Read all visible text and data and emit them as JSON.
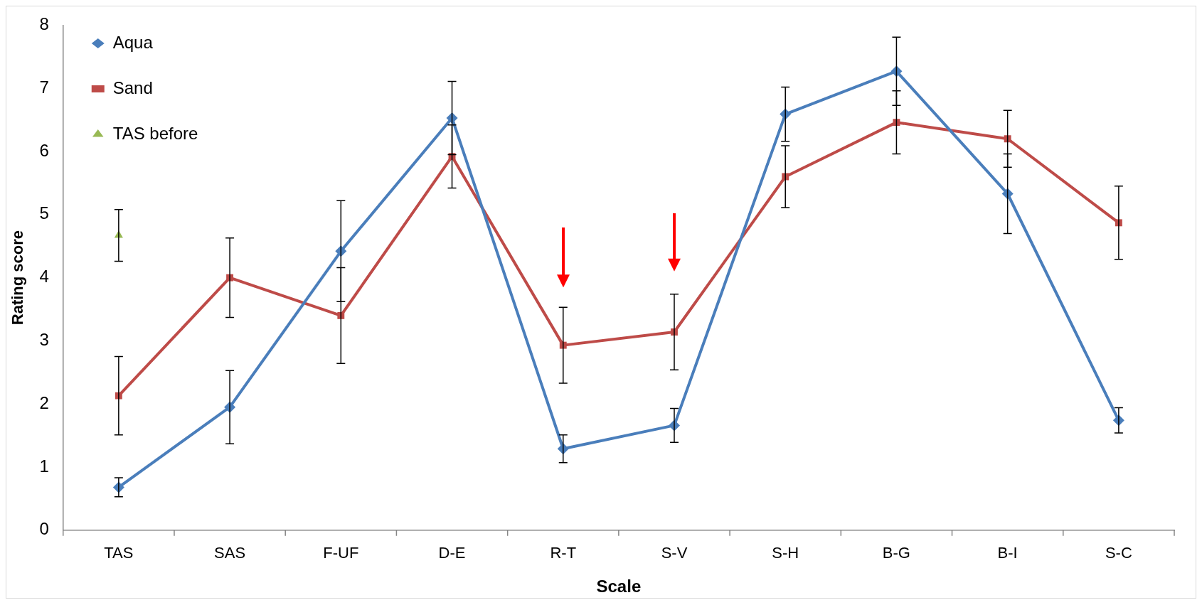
{
  "chart_data": {
    "type": "line",
    "xlabel": "Scale",
    "ylabel": "Rating score",
    "categories": [
      "TAS",
      "SAS",
      "F-UF",
      "D-E",
      "R-T",
      "S-V",
      "S-H",
      "B-G",
      "B-I",
      "S-C"
    ],
    "series": [
      {
        "name": "Aqua",
        "color": "#4a7ebb",
        "marker": "diamond",
        "values": [
          0.68,
          1.95,
          4.42,
          6.53,
          1.29,
          1.66,
          6.59,
          7.27,
          5.33,
          1.74
        ],
        "errors": [
          0.15,
          0.58,
          0.8,
          0.58,
          0.22,
          0.27,
          0.43,
          0.54,
          0.63,
          0.2
        ]
      },
      {
        "name": "Sand",
        "color": "#be4b48",
        "marker": "square",
        "values": [
          2.13,
          4.0,
          3.4,
          5.92,
          2.93,
          3.14,
          5.6,
          6.46,
          6.2,
          4.87
        ],
        "errors": [
          0.62,
          0.63,
          0.76,
          0.5,
          0.6,
          0.6,
          0.49,
          0.5,
          0.45,
          0.58
        ]
      },
      {
        "name": "TAS before",
        "type": "scatter",
        "color": "#98b954",
        "marker": "triangle",
        "x": [
          "TAS"
        ],
        "values": [
          4.67
        ],
        "errors": [
          0.41
        ]
      }
    ],
    "ylim": [
      0,
      8
    ],
    "yticks": [
      0,
      1,
      2,
      3,
      4,
      5,
      6,
      7,
      8
    ],
    "grid": false,
    "legend": "top left"
  }
}
